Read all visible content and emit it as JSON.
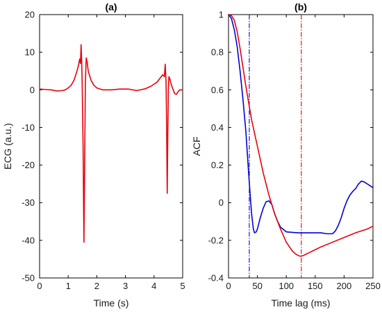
{
  "chart_data": [
    {
      "type": "line",
      "title": "(a)",
      "xlabel": "Time (s)",
      "ylabel": "ECG (a.u.)",
      "xlim": [
        0,
        5
      ],
      "ylim": [
        -50,
        20
      ],
      "xticks": [
        0,
        1,
        2,
        3,
        4,
        5
      ],
      "yticks": [
        -50,
        -40,
        -30,
        -20,
        -10,
        0,
        10,
        20
      ],
      "grid": false,
      "series": [
        {
          "color": "#e8000b",
          "x": [
            0,
            0.2,
            0.4,
            0.6,
            0.8,
            0.9,
            1.0,
            1.1,
            1.2,
            1.3,
            1.36,
            1.4,
            1.43,
            1.45,
            1.47,
            1.49,
            1.52,
            1.55,
            1.58,
            1.6,
            1.63,
            1.66,
            1.7,
            1.8,
            1.9,
            2.0,
            2.2,
            2.5,
            2.8,
            3.1,
            3.4,
            3.7,
            3.9,
            4.1,
            4.2,
            4.3,
            4.36,
            4.39,
            4.42,
            4.44,
            4.46,
            4.48,
            4.5,
            4.52,
            4.55,
            4.58,
            4.62,
            4.67,
            4.72,
            4.78,
            4.84,
            4.9,
            5.0
          ],
          "y": [
            0.2,
            0.1,
            0,
            -0.3,
            -0.2,
            0,
            0.5,
            1.2,
            2.5,
            4.8,
            6.5,
            8.2,
            7,
            12,
            8,
            1,
            -15,
            -40.5,
            -15,
            2,
            8.5,
            7.5,
            5,
            2.5,
            1.2,
            0.5,
            0,
            0,
            0.2,
            0.2,
            -0.2,
            0.3,
            1,
            2,
            3,
            4,
            3.5,
            6.8,
            2,
            -10,
            -27.5,
            -12,
            0,
            3.5,
            3,
            2,
            1,
            0,
            -1,
            -1.2,
            -0.5,
            0,
            0
          ]
        }
      ]
    },
    {
      "type": "line",
      "title": "(b)",
      "xlabel": "Time lag (ms)",
      "ylabel": "ACF",
      "xlim": [
        0,
        250
      ],
      "ylim": [
        -0.4,
        1
      ],
      "xticks": [
        0,
        50,
        100,
        150,
        200,
        250
      ],
      "yticks": [
        -0.4,
        -0.2,
        0,
        0.2,
        0.4,
        0.6,
        0.8,
        1
      ],
      "grid": false,
      "vlines": [
        {
          "x": 36,
          "color": "#0000d8"
        },
        {
          "x": 126,
          "color": "#e8000b"
        }
      ],
      "series": [
        {
          "color": "#0000d8",
          "x": [
            0,
            5,
            10,
            15,
            20,
            25,
            30,
            35,
            38,
            40,
            43,
            45,
            48,
            50,
            55,
            60,
            65,
            70,
            75,
            80,
            85,
            90,
            100,
            120,
            140,
            160,
            170,
            180,
            185,
            190,
            195,
            200,
            205,
            210,
            215,
            220,
            225,
            230,
            235,
            240,
            245,
            250
          ],
          "y": [
            1,
            0.98,
            0.92,
            0.83,
            0.7,
            0.55,
            0.38,
            0.15,
            0.02,
            -0.06,
            -0.14,
            -0.16,
            -0.155,
            -0.14,
            -0.08,
            -0.03,
            0.005,
            0.01,
            -0.01,
            -0.06,
            -0.1,
            -0.13,
            -0.155,
            -0.16,
            -0.16,
            -0.16,
            -0.165,
            -0.165,
            -0.15,
            -0.12,
            -0.08,
            -0.03,
            0.01,
            0.04,
            0.06,
            0.075,
            0.1,
            0.115,
            0.11,
            0.1,
            0.09,
            0.08
          ]
        },
        {
          "color": "#e8000b",
          "x": [
            0,
            5,
            10,
            15,
            20,
            25,
            30,
            35,
            40,
            50,
            60,
            70,
            80,
            90,
            100,
            110,
            115,
            120,
            125,
            130,
            140,
            150,
            160,
            180,
            200,
            220,
            240,
            250
          ],
          "y": [
            1,
            0.995,
            0.97,
            0.91,
            0.82,
            0.72,
            0.62,
            0.53,
            0.44,
            0.3,
            0.16,
            0.04,
            -0.06,
            -0.14,
            -0.21,
            -0.255,
            -0.27,
            -0.28,
            -0.285,
            -0.28,
            -0.265,
            -0.25,
            -0.235,
            -0.21,
            -0.185,
            -0.16,
            -0.14,
            -0.125
          ]
        }
      ]
    }
  ]
}
